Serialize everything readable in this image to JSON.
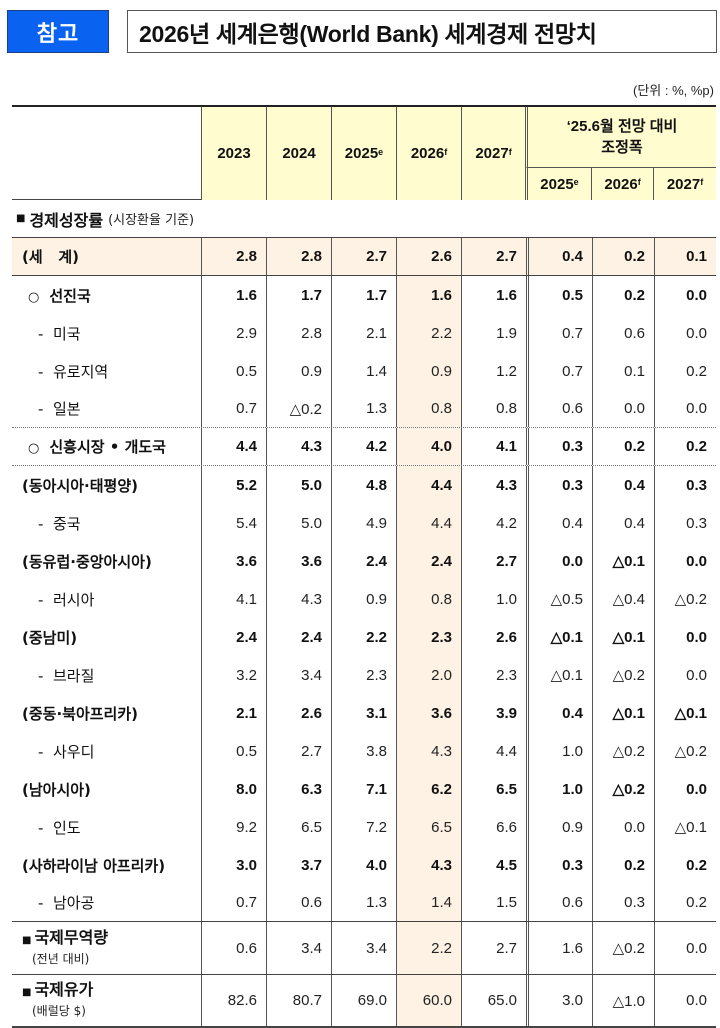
{
  "header": {
    "tag": "참고",
    "title": "2026년 세계은행(World Bank) 세계경제 전망치",
    "unit": "(단위 : %, %p)"
  },
  "columns": {
    "years": [
      {
        "year": "2023",
        "sup": ""
      },
      {
        "year": "2024",
        "sup": ""
      },
      {
        "year": "2025",
        "sup": "e"
      },
      {
        "year": "2026",
        "sup": "f"
      },
      {
        "year": "2027",
        "sup": "f"
      }
    ],
    "adjustment_title_line1": "‘25.6월 전망 대비",
    "adjustment_title_line2": "조정폭",
    "adjustment": [
      {
        "year": "2025",
        "sup": "e"
      },
      {
        "year": "2026",
        "sup": "f"
      },
      {
        "year": "2027",
        "sup": "f"
      }
    ]
  },
  "section": {
    "bullet": "■",
    "title": "경제성장률",
    "subtitle": "(시장환율 기준)"
  },
  "rows": [
    {
      "label": "(세   계)",
      "style": "world",
      "values": [
        "2.8",
        "2.8",
        "2.7",
        "2.6",
        "2.7"
      ],
      "adj": [
        "0.4",
        "0.2",
        "0.1"
      ]
    },
    {
      "label": "선진국",
      "prefix": "○",
      "style": "bold",
      "values": [
        "1.6",
        "1.7",
        "1.7",
        "1.6",
        "1.6"
      ],
      "adj": [
        "0.5",
        "0.2",
        "0.0"
      ]
    },
    {
      "label": "미국",
      "prefix": "-",
      "style": "light",
      "values": [
        "2.9",
        "2.8",
        "2.1",
        "2.2",
        "1.9"
      ],
      "adj": [
        "0.7",
        "0.6",
        "0.0"
      ]
    },
    {
      "label": "유로지역",
      "prefix": "-",
      "style": "light",
      "values": [
        "0.5",
        "0.9",
        "1.4",
        "0.9",
        "1.2"
      ],
      "adj": [
        "0.7",
        "0.1",
        "0.2"
      ]
    },
    {
      "label": "일본",
      "prefix": "-",
      "style": "light",
      "values": [
        "0.7",
        "△0.2",
        "1.3",
        "0.8",
        "0.8"
      ],
      "adj": [
        "0.6",
        "0.0",
        "0.0"
      ]
    },
    {
      "label": "신흥시장 • 개도국",
      "prefix": "○",
      "style": "bold",
      "values": [
        "4.4",
        "4.3",
        "4.2",
        "4.0",
        "4.1"
      ],
      "adj": [
        "0.3",
        "0.2",
        "0.2"
      ]
    },
    {
      "label": "(동아시아·태평양)",
      "style": "bold",
      "values": [
        "5.2",
        "5.0",
        "4.8",
        "4.4",
        "4.3"
      ],
      "adj": [
        "0.3",
        "0.4",
        "0.3"
      ]
    },
    {
      "label": "중국",
      "prefix": "-",
      "style": "light",
      "values": [
        "5.4",
        "5.0",
        "4.9",
        "4.4",
        "4.2"
      ],
      "adj": [
        "0.4",
        "0.4",
        "0.3"
      ]
    },
    {
      "label": "(동유럽·중앙아시아)",
      "style": "bold",
      "values": [
        "3.6",
        "3.6",
        "2.4",
        "2.4",
        "2.7"
      ],
      "adj": [
        "0.0",
        "△0.1",
        "0.0"
      ]
    },
    {
      "label": "러시아",
      "prefix": "-",
      "style": "light",
      "values": [
        "4.1",
        "4.3",
        "0.9",
        "0.8",
        "1.0"
      ],
      "adj": [
        "△0.5",
        "△0.4",
        "△0.2"
      ]
    },
    {
      "label": "(중남미)",
      "style": "bold",
      "values": [
        "2.4",
        "2.4",
        "2.2",
        "2.3",
        "2.6"
      ],
      "adj": [
        "△0.1",
        "△0.1",
        "0.0"
      ]
    },
    {
      "label": "브라질",
      "prefix": "-",
      "style": "light",
      "values": [
        "3.2",
        "3.4",
        "2.3",
        "2.0",
        "2.3"
      ],
      "adj": [
        "△0.1",
        "△0.2",
        "0.0"
      ]
    },
    {
      "label": "(중동·북아프리카)",
      "style": "bold",
      "values": [
        "2.1",
        "2.6",
        "3.1",
        "3.6",
        "3.9"
      ],
      "adj": [
        "0.4",
        "△0.1",
        "△0.1"
      ]
    },
    {
      "label": "사우디",
      "prefix": "-",
      "style": "light",
      "values": [
        "0.5",
        "2.7",
        "3.8",
        "4.3",
        "4.4"
      ],
      "adj": [
        "1.0",
        "△0.2",
        "△0.2"
      ]
    },
    {
      "label": "(남아시아)",
      "style": "bold",
      "values": [
        "8.0",
        "6.3",
        "7.1",
        "6.2",
        "6.5"
      ],
      "adj": [
        "1.0",
        "△0.2",
        "0.0"
      ]
    },
    {
      "label": "인도",
      "prefix": "-",
      "style": "light",
      "values": [
        "9.2",
        "6.5",
        "7.2",
        "6.5",
        "6.6"
      ],
      "adj": [
        "0.9",
        "0.0",
        "△0.1"
      ]
    },
    {
      "label": "(사하라이남 아프리카)",
      "style": "bold",
      "values": [
        "3.0",
        "3.7",
        "4.0",
        "4.3",
        "4.5"
      ],
      "adj": [
        "0.3",
        "0.2",
        "0.2"
      ]
    },
    {
      "label": "남아공",
      "prefix": "-",
      "style": "light",
      "values": [
        "0.7",
        "0.6",
        "1.3",
        "1.4",
        "1.5"
      ],
      "adj": [
        "0.6",
        "0.3",
        "0.2"
      ]
    }
  ],
  "trade": {
    "bullet": "■",
    "title": "국제무역량",
    "subtitle": "(전년 대비)",
    "values": [
      "0.6",
      "3.4",
      "3.4",
      "2.2",
      "2.7"
    ],
    "adj": [
      "1.6",
      "△0.2",
      "0.0"
    ]
  },
  "oil": {
    "bullet": "■",
    "title": "국제유가",
    "subtitle": "(배럴당 $)",
    "values": [
      "82.6",
      "80.7",
      "69.0",
      "60.0",
      "65.0"
    ],
    "adj": [
      "3.0",
      "△1.0",
      "0.0"
    ]
  },
  "colors": {
    "tag_bg": "#0a63f0",
    "header_bg": "#fffdd0",
    "highlight_bg": "#fdf2e3"
  }
}
